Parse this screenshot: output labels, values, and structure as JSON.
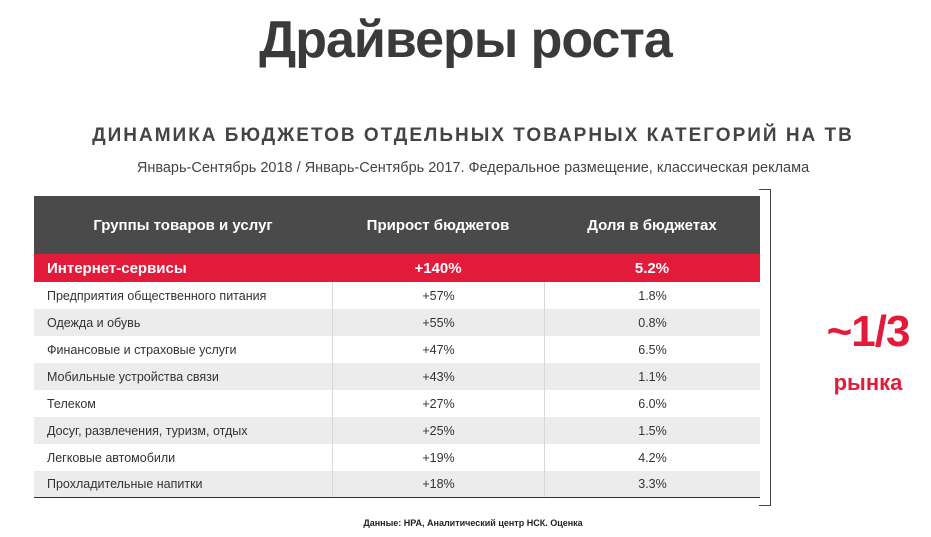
{
  "title": "Драйверы роста",
  "subtitle": "ДИНАМИКА БЮДЖЕТОВ ОТДЕЛЬНЫХ ТОВАРНЫХ КАТЕГОРИЙ НА ТВ",
  "caption": "Январь-Сентябрь 2018 / Январь-Сентябрь 2017.  Федеральное размещение, классическая реклама",
  "table": {
    "headers": [
      "Группы товаров и услуг",
      "Прирост бюджетов",
      "Доля в бюджетах"
    ],
    "highlight_row": {
      "category": "Интернет-сервисы",
      "growth": "+140%",
      "share": "5.2%"
    },
    "rows": [
      {
        "category": "Предприятия общественного питания",
        "growth": "+57%",
        "share": "1.8%"
      },
      {
        "category": "Одежда и обувь",
        "growth": "+55%",
        "share": "0.8%"
      },
      {
        "category": "Финансовые и страховые услуги",
        "growth": "+47%",
        "share": "6.5%"
      },
      {
        "category": "Мобильные устройства связи",
        "growth": "+43%",
        "share": "1.1%"
      },
      {
        "category": "Телеком",
        "growth": "+27%",
        "share": "6.0%"
      },
      {
        "category": "Досуг, развлечения, туризм, отдых",
        "growth": "+25%",
        "share": "1.5%"
      },
      {
        "category": "Легковые автомобили",
        "growth": "+19%",
        "share": "4.2%"
      },
      {
        "category": "Прохладительные напитки",
        "growth": "+18%",
        "share": "3.3%"
      }
    ]
  },
  "share_callout": {
    "value": "~1/3",
    "label": "рынка"
  },
  "source": "Данные: НРА, Аналитический центр НСК. Оценка",
  "colors": {
    "accent": "#e31b3a",
    "header_bg": "#4a4a4a",
    "alt_row": "#ececec"
  }
}
